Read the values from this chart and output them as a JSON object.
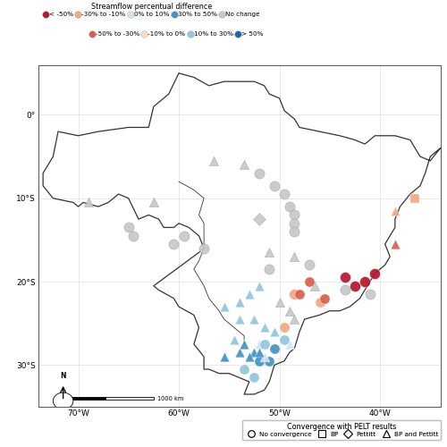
{
  "color_categories": [
    {
      "label": "< -50%",
      "color": "#b2182b"
    },
    {
      "label": "-50% to -30%",
      "color": "#d6604d"
    },
    {
      "label": "-30% to -10%",
      "color": "#f4a582"
    },
    {
      "label": "-10% to 0%",
      "color": "#fddbc7"
    },
    {
      "label": "0% to 10%",
      "color": "#d1e5f0"
    },
    {
      "label": "10% to 30%",
      "color": "#92c5de"
    },
    {
      "label": "30% to 50%",
      "color": "#4393c3"
    },
    {
      "label": "> 50%",
      "color": "#2166ac"
    },
    {
      "label": "No change",
      "color": "#c8c8c8"
    }
  ],
  "color_legend_title": "Streamflow percentual difference",
  "convergence_legend_title": "Convergence with PELT results",
  "convergence_items": [
    {
      "label": "No convergence",
      "marker": "o"
    },
    {
      "label": "BP",
      "marker": "s"
    },
    {
      "label": "Pettitt",
      "marker": "D"
    },
    {
      "label": "BP and Pettitt",
      "marker": "^"
    }
  ],
  "xlim": [
    -74,
    -34
  ],
  "ylim": [
    -35,
    6
  ],
  "xticks": [
    -70,
    -60,
    -50,
    -40
  ],
  "yticks": [
    0,
    -10,
    -20,
    -30
  ],
  "xlabel_labels": [
    "70°W",
    "60°W",
    "50°W",
    "40°W"
  ],
  "ylabel_labels": [
    "0°",
    "10°S",
    "20°S",
    "30°S"
  ],
  "points": [
    {
      "lon": -69.0,
      "lat": -10.5,
      "color": "#c8c8c8",
      "marker": "^",
      "size": 55
    },
    {
      "lon": -62.5,
      "lat": -10.5,
      "color": "#c8c8c8",
      "marker": "^",
      "size": 55
    },
    {
      "lon": -56.5,
      "lat": -5.5,
      "color": "#c8c8c8",
      "marker": "^",
      "size": 55
    },
    {
      "lon": -53.5,
      "lat": -6.0,
      "color": "#c8c8c8",
      "marker": "^",
      "size": 55
    },
    {
      "lon": -52.0,
      "lat": -7.0,
      "color": "#c8c8c8",
      "marker": "o",
      "size": 65
    },
    {
      "lon": -50.5,
      "lat": -8.5,
      "color": "#c8c8c8",
      "marker": "o",
      "size": 65
    },
    {
      "lon": -49.5,
      "lat": -9.5,
      "color": "#c8c8c8",
      "marker": "o",
      "size": 65
    },
    {
      "lon": -49.0,
      "lat": -11.0,
      "color": "#c8c8c8",
      "marker": "o",
      "size": 65
    },
    {
      "lon": -48.5,
      "lat": -12.0,
      "color": "#c8c8c8",
      "marker": "o",
      "size": 65
    },
    {
      "lon": -48.5,
      "lat": -13.0,
      "color": "#c8c8c8",
      "marker": "o",
      "size": 65
    },
    {
      "lon": -48.5,
      "lat": -14.0,
      "color": "#c8c8c8",
      "marker": "o",
      "size": 65
    },
    {
      "lon": -65.0,
      "lat": -13.5,
      "color": "#c8c8c8",
      "marker": "o",
      "size": 65
    },
    {
      "lon": -59.5,
      "lat": -14.5,
      "color": "#c8c8c8",
      "marker": "o",
      "size": 65
    },
    {
      "lon": -52.0,
      "lat": -12.5,
      "color": "#c8c8c8",
      "marker": "D",
      "size": 50
    },
    {
      "lon": -64.5,
      "lat": -14.5,
      "color": "#c8c8c8",
      "marker": "o",
      "size": 65
    },
    {
      "lon": -60.5,
      "lat": -15.5,
      "color": "#c8c8c8",
      "marker": "o",
      "size": 65
    },
    {
      "lon": -57.5,
      "lat": -16.0,
      "color": "#c8c8c8",
      "marker": "o",
      "size": 65
    },
    {
      "lon": -51.0,
      "lat": -16.5,
      "color": "#c8c8c8",
      "marker": "^",
      "size": 55
    },
    {
      "lon": -48.5,
      "lat": -17.0,
      "color": "#c8c8c8",
      "marker": "^",
      "size": 55
    },
    {
      "lon": -47.0,
      "lat": -18.0,
      "color": "#c8c8c8",
      "marker": "o",
      "size": 65
    },
    {
      "lon": -51.0,
      "lat": -18.5,
      "color": "#c8c8c8",
      "marker": "o",
      "size": 65
    },
    {
      "lon": -46.5,
      "lat": -20.5,
      "color": "#c8c8c8",
      "marker": "^",
      "size": 55
    },
    {
      "lon": -43.5,
      "lat": -21.0,
      "color": "#c8c8c8",
      "marker": "o",
      "size": 65
    },
    {
      "lon": -50.0,
      "lat": -22.5,
      "color": "#c8c8c8",
      "marker": "^",
      "size": 55
    },
    {
      "lon": -49.0,
      "lat": -23.5,
      "color": "#c8c8c8",
      "marker": "^",
      "size": 55
    },
    {
      "lon": -48.5,
      "lat": -24.5,
      "color": "#c8c8c8",
      "marker": "^",
      "size": 55
    },
    {
      "lon": -41.0,
      "lat": -21.5,
      "color": "#c8c8c8",
      "marker": "o",
      "size": 65
    },
    {
      "lon": -38.5,
      "lat": -11.5,
      "color": "#f4a582",
      "marker": "^",
      "size": 55
    },
    {
      "lon": -36.5,
      "lat": -10.0,
      "color": "#f4a582",
      "marker": "s",
      "size": 50
    },
    {
      "lon": -48.5,
      "lat": -21.5,
      "color": "#f4a582",
      "marker": "o",
      "size": 72
    },
    {
      "lon": -46.0,
      "lat": -22.5,
      "color": "#f4a582",
      "marker": "o",
      "size": 65
    },
    {
      "lon": -49.5,
      "lat": -25.5,
      "color": "#f4a582",
      "marker": "o",
      "size": 65
    },
    {
      "lon": -52.0,
      "lat": -20.5,
      "color": "#92c5de",
      "marker": "^",
      "size": 60
    },
    {
      "lon": -53.0,
      "lat": -21.5,
      "color": "#92c5de",
      "marker": "^",
      "size": 60
    },
    {
      "lon": -54.0,
      "lat": -22.5,
      "color": "#92c5de",
      "marker": "^",
      "size": 60
    },
    {
      "lon": -55.5,
      "lat": -23.0,
      "color": "#92c5de",
      "marker": "^",
      "size": 60
    },
    {
      "lon": -54.0,
      "lat": -24.5,
      "color": "#92c5de",
      "marker": "^",
      "size": 60
    },
    {
      "lon": -52.5,
      "lat": -24.5,
      "color": "#92c5de",
      "marker": "^",
      "size": 60
    },
    {
      "lon": -51.5,
      "lat": -25.5,
      "color": "#92c5de",
      "marker": "^",
      "size": 60
    },
    {
      "lon": -50.5,
      "lat": -26.0,
      "color": "#92c5de",
      "marker": "^",
      "size": 60
    },
    {
      "lon": -54.5,
      "lat": -27.0,
      "color": "#92c5de",
      "marker": "^",
      "size": 60
    },
    {
      "lon": -49.5,
      "lat": -27.0,
      "color": "#92c5de",
      "marker": "o",
      "size": 65
    },
    {
      "lon": -54.0,
      "lat": -28.5,
      "color": "#4393c3",
      "marker": "^",
      "size": 60
    },
    {
      "lon": -55.5,
      "lat": -29.0,
      "color": "#4393c3",
      "marker": "^",
      "size": 60
    },
    {
      "lon": -52.5,
      "lat": -28.5,
      "color": "#4393c3",
      "marker": "^",
      "size": 60
    },
    {
      "lon": -53.5,
      "lat": -27.5,
      "color": "#4393c3",
      "marker": "^",
      "size": 60
    },
    {
      "lon": -52.0,
      "lat": -29.5,
      "color": "#4393c3",
      "marker": "o",
      "size": 65
    },
    {
      "lon": -51.0,
      "lat": -29.5,
      "color": "#4393c3",
      "marker": "o",
      "size": 65
    },
    {
      "lon": -53.5,
      "lat": -30.5,
      "color": "#92c5de",
      "marker": "o",
      "size": 65
    },
    {
      "lon": -52.5,
      "lat": -31.5,
      "color": "#92c5de",
      "marker": "o",
      "size": 65
    },
    {
      "lon": -51.5,
      "lat": -29.0,
      "color": "#d1e5f0",
      "marker": "^",
      "size": 60
    },
    {
      "lon": -52.0,
      "lat": -27.5,
      "color": "#d1e5f0",
      "marker": "^",
      "size": 60
    },
    {
      "lon": -49.0,
      "lat": -27.5,
      "color": "#d1e5f0",
      "marker": "^",
      "size": 60
    },
    {
      "lon": -43.5,
      "lat": -19.5,
      "color": "#b2182b",
      "marker": "o",
      "size": 75
    },
    {
      "lon": -42.5,
      "lat": -20.5,
      "color": "#b2182b",
      "marker": "o",
      "size": 75
    },
    {
      "lon": -41.5,
      "lat": -20.0,
      "color": "#b2182b",
      "marker": "o",
      "size": 75
    },
    {
      "lon": -40.5,
      "lat": -19.0,
      "color": "#b2182b",
      "marker": "o",
      "size": 75
    },
    {
      "lon": -38.5,
      "lat": -15.5,
      "color": "#d6604d",
      "marker": "^",
      "size": 60
    },
    {
      "lon": -47.0,
      "lat": -20.0,
      "color": "#d6604d",
      "marker": "o",
      "size": 65
    },
    {
      "lon": -48.0,
      "lat": -21.5,
      "color": "#d6604d",
      "marker": "o",
      "size": 65
    },
    {
      "lon": -45.5,
      "lat": -22.0,
      "color": "#d6604d",
      "marker": "o",
      "size": 65
    },
    {
      "lon": -53.0,
      "lat": -29.0,
      "color": "#4393c3",
      "marker": "^",
      "size": 60
    },
    {
      "lon": -52.0,
      "lat": -28.5,
      "color": "#4393c3",
      "marker": "^",
      "size": 60
    },
    {
      "lon": -50.5,
      "lat": -28.0,
      "color": "#4393c3",
      "marker": "o",
      "size": 65
    },
    {
      "lon": -51.5,
      "lat": -27.5,
      "color": "#92c5de",
      "marker": "o",
      "size": 65
    }
  ],
  "bg_color": "#ffffff",
  "grid_color": "#e5e5e5",
  "border_color": "#333333",
  "scalebar_x0": -72.0,
  "scalebar_x1": -62.5,
  "scalebar_y": -34.0,
  "north_x": -71.5,
  "north_y_base": -33.8,
  "north_y_top": -32.2
}
